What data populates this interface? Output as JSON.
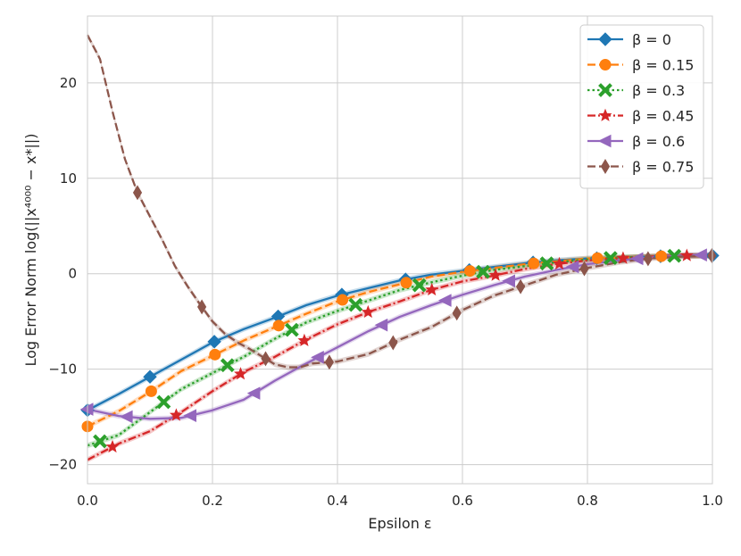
{
  "chart_data": {
    "type": "line",
    "xlabel": "Epsilon ε",
    "ylabel": "Log Error Norm log(||x⁴⁰⁰⁰ − x*||)",
    "xlim": [
      0,
      1
    ],
    "ylim": [
      -22,
      27
    ],
    "x_ticks": [
      0.0,
      0.2,
      0.4,
      0.6,
      0.8,
      1.0
    ],
    "x_tick_labels": [
      "0.0",
      "0.2",
      "0.4",
      "0.6",
      "0.8",
      "1.0"
    ],
    "y_ticks": [
      -20,
      -10,
      0,
      10,
      20
    ],
    "y_tick_labels": [
      "−20",
      "−10",
      "0",
      "10",
      "20"
    ],
    "grid": true,
    "legend_position": "top-right",
    "series": [
      {
        "name": "β = 0",
        "color": "#1f77b4",
        "dash": "solid",
        "marker": "diamond",
        "x": [
          0.0,
          0.05,
          0.1,
          0.15,
          0.2,
          0.25,
          0.3,
          0.35,
          0.4,
          0.45,
          0.5,
          0.55,
          0.6,
          0.65,
          0.7,
          0.75,
          0.8,
          0.85,
          0.9,
          0.95,
          1.0
        ],
        "y": [
          -14.3,
          -12.6,
          -10.8,
          -9.0,
          -7.2,
          -5.8,
          -4.6,
          -3.3,
          -2.3,
          -1.5,
          -0.7,
          -0.1,
          0.3,
          0.7,
          1.1,
          1.4,
          1.6,
          1.7,
          1.8,
          1.9,
          1.9
        ],
        "marker_x": [
          0.0,
          0.1,
          0.203,
          0.305,
          0.407,
          0.509,
          0.611,
          0.713,
          0.815,
          0.917,
          1.0
        ]
      },
      {
        "name": "β = 0.15",
        "color": "#ff7f0e",
        "dash": "dashed",
        "marker": "circle",
        "x": [
          0.0,
          0.05,
          0.1,
          0.15,
          0.2,
          0.25,
          0.3,
          0.35,
          0.4,
          0.45,
          0.5,
          0.55,
          0.6,
          0.65,
          0.7,
          0.75,
          0.8,
          0.85,
          0.9,
          0.95,
          1.0
        ],
        "y": [
          -16.0,
          -14.4,
          -12.4,
          -10.2,
          -8.6,
          -7.0,
          -5.6,
          -4.2,
          -2.9,
          -1.9,
          -1.1,
          -0.3,
          0.2,
          0.6,
          1.0,
          1.3,
          1.6,
          1.7,
          1.8,
          1.9,
          1.9
        ],
        "marker_x": [
          0.0,
          0.102,
          0.204,
          0.306,
          0.408,
          0.51,
          0.612,
          0.714,
          0.816,
          0.918
        ]
      },
      {
        "name": "β = 0.3",
        "color": "#2ca02c",
        "dash": "dotted",
        "marker": "x",
        "x": [
          0.0,
          0.05,
          0.1,
          0.15,
          0.2,
          0.25,
          0.3,
          0.35,
          0.4,
          0.45,
          0.5,
          0.55,
          0.6,
          0.65,
          0.7,
          0.75,
          0.8,
          0.85,
          0.9,
          0.95,
          1.0
        ],
        "y": [
          -18.0,
          -16.9,
          -14.5,
          -12.1,
          -10.4,
          -8.7,
          -6.8,
          -5.1,
          -3.9,
          -2.8,
          -1.7,
          -0.9,
          -0.2,
          0.4,
          0.8,
          1.2,
          1.5,
          1.7,
          1.8,
          1.9,
          1.9
        ],
        "marker_x": [
          0.02,
          0.122,
          0.224,
          0.327,
          0.429,
          0.531,
          0.633,
          0.735,
          0.837,
          0.939
        ]
      },
      {
        "name": "β = 0.45",
        "color": "#d62728",
        "dash": "dashdot",
        "marker": "star",
        "x": [
          0.0,
          0.05,
          0.1,
          0.15,
          0.2,
          0.25,
          0.3,
          0.35,
          0.4,
          0.45,
          0.5,
          0.55,
          0.6,
          0.65,
          0.7,
          0.75,
          0.8,
          0.85,
          0.9,
          0.95,
          1.0
        ],
        "y": [
          -19.5,
          -17.8,
          -16.5,
          -14.5,
          -12.3,
          -10.3,
          -8.7,
          -6.9,
          -5.3,
          -4.0,
          -2.9,
          -1.7,
          -0.8,
          -0.2,
          0.5,
          1.0,
          1.4,
          1.6,
          1.8,
          1.9,
          1.9
        ],
        "marker_x": [
          0.04,
          0.142,
          0.245,
          0.347,
          0.449,
          0.551,
          0.653,
          0.755,
          0.857,
          0.959
        ]
      },
      {
        "name": "β = 0.6",
        "color": "#9467bd",
        "dash": "solid",
        "marker": "triangle-left",
        "x": [
          0.0,
          0.05,
          0.1,
          0.15,
          0.2,
          0.25,
          0.3,
          0.35,
          0.4,
          0.45,
          0.5,
          0.55,
          0.6,
          0.65,
          0.7,
          0.75,
          0.8,
          0.85,
          0.9,
          0.95,
          1.0
        ],
        "y": [
          -14.2,
          -14.9,
          -15.2,
          -15.1,
          -14.3,
          -13.2,
          -11.2,
          -9.4,
          -7.7,
          -6.0,
          -4.5,
          -3.3,
          -2.2,
          -1.2,
          -0.3,
          0.4,
          1.0,
          1.4,
          1.7,
          1.9,
          2.0
        ],
        "marker_x": [
          0.0,
          0.063,
          0.165,
          0.267,
          0.369,
          0.471,
          0.573,
          0.675,
          0.777,
          0.88,
          0.982
        ]
      },
      {
        "name": "β = 0.75",
        "color": "#8c564b",
        "dash": "dashed",
        "marker": "thin-diamond",
        "x": [
          0.0,
          0.02,
          0.04,
          0.06,
          0.08,
          0.1,
          0.12,
          0.14,
          0.16,
          0.18,
          0.2,
          0.22,
          0.24,
          0.26,
          0.28,
          0.3,
          0.32,
          0.34,
          0.36,
          0.38,
          0.4,
          0.45,
          0.5,
          0.55,
          0.6,
          0.65,
          0.7,
          0.75,
          0.8,
          0.85,
          0.9,
          0.95,
          1.0
        ],
        "y": [
          25.0,
          22.5,
          17.0,
          12.0,
          8.5,
          6.0,
          3.5,
          0.8,
          -1.3,
          -3.2,
          -5.0,
          -6.3,
          -7.2,
          -7.9,
          -8.7,
          -9.5,
          -9.8,
          -9.8,
          -9.4,
          -9.3,
          -9.2,
          -8.4,
          -6.9,
          -5.6,
          -3.8,
          -2.3,
          -1.2,
          -0.1,
          0.6,
          1.2,
          1.6,
          1.8,
          1.9
        ],
        "marker_x": [
          0.08,
          0.183,
          0.285,
          0.387,
          0.489,
          0.591,
          0.693,
          0.795,
          0.897,
          0.999
        ]
      }
    ]
  }
}
